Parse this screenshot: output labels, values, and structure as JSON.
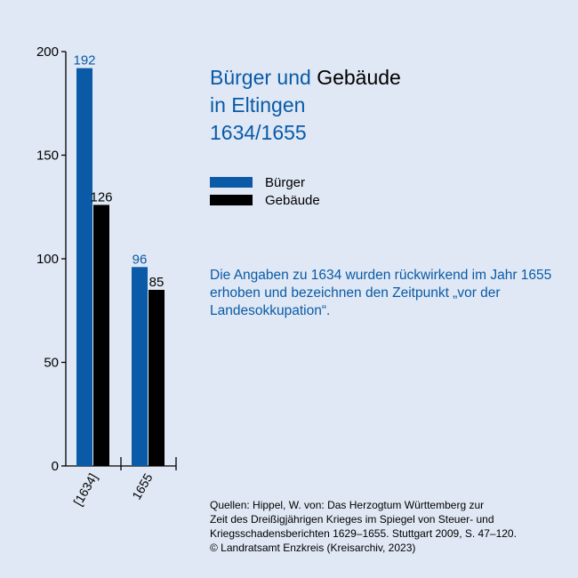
{
  "colors": {
    "background": "#dfe8f4",
    "accent_blue": "#0a5aa8",
    "black": "#000000"
  },
  "title": {
    "part1": "Bürger und ",
    "part2": "Gebäude",
    "line2": "in Eltingen",
    "line3": "1634/1655"
  },
  "legend": [
    {
      "label": "Bürger",
      "color": "#0a5aa8"
    },
    {
      "label": "Gebäude",
      "color": "#000000"
    }
  ],
  "note": "Die Angaben zu 1634 wurden rückwirkend im Jahr 1655 erhoben und bezeichnen den Zeitpunkt „vor der Landesokkupation“.",
  "sources": [
    "Quellen: Hippel, W. von: Das Herzogtum Württemberg zur",
    "Zeit des Dreißigjährigen Krieges im Spiegel von Steuer- und",
    "Kriegsschadensberichten 1629–1655. Stuttgart 2009, S. 47–120.",
    "© Landratsamt Enzkreis (Kreisarchiv, 2023)"
  ],
  "chart_data": {
    "type": "bar",
    "title": "Bürger und Gebäude in Eltingen 1634/1655",
    "categories": [
      "[1634]",
      "1655"
    ],
    "series": [
      {
        "name": "Bürger",
        "values": [
          192,
          96
        ],
        "color": "#0a5aa8"
      },
      {
        "name": "Gebäude",
        "values": [
          126,
          85
        ],
        "color": "#000000"
      }
    ],
    "y_ticks": [
      0,
      50,
      100,
      150,
      200
    ],
    "ylim": [
      0,
      200
    ],
    "grid": false,
    "legend_position": "right"
  }
}
